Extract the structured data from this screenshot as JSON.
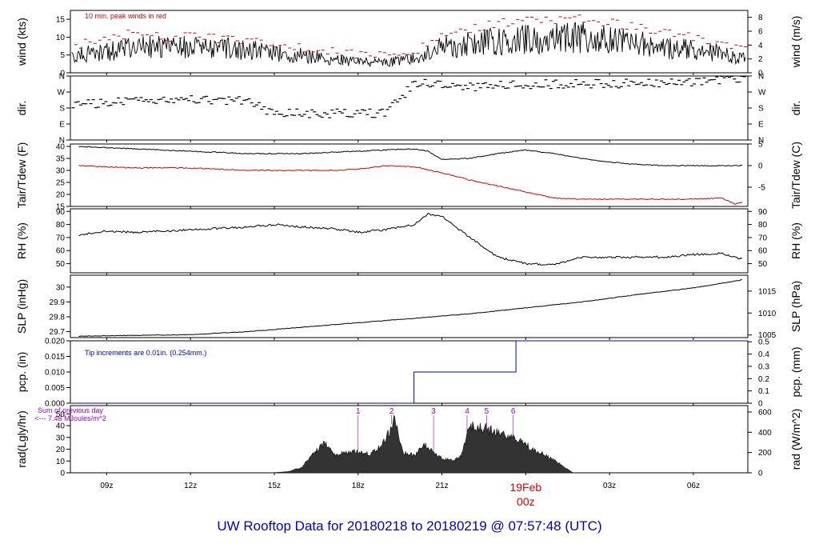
{
  "footer_title": "UW Rooftop Data for 20180218  to  20180219 @ 07:57:48  (UTC)",
  "x_axis": {
    "ticks": [
      {
        "label": "09z",
        "hour": 1
      },
      {
        "label": "12z",
        "hour": 4
      },
      {
        "label": "15z",
        "hour": 7
      },
      {
        "label": "18z",
        "hour": 10
      },
      {
        "label": "21z",
        "hour": 13
      },
      {
        "label": "00z",
        "hour": 16
      },
      {
        "label": "03z",
        "hour": 19
      },
      {
        "label": "06z",
        "hour": 22
      }
    ],
    "range_hours_from_08z": [
      -0.3,
      23.95
    ],
    "date_label": "19Feb",
    "date_sub": "00z",
    "date_color": "#dd0000"
  },
  "chart_data": [
    {
      "type": "line",
      "ylabel_left": "wind (kts)",
      "ylabel_right": "wind (m/s)",
      "ylim": [
        0,
        17.5
      ],
      "yticks_left": [
        0,
        5,
        10,
        15
      ],
      "yticks_right": [
        0,
        2,
        4,
        6,
        8
      ],
      "annotation": "10 min. peak winds in red",
      "annotation_color": "#dd0000",
      "series": [
        {
          "color": "#000000",
          "x": [
            0,
            1,
            2,
            3,
            4,
            5,
            6,
            7,
            8,
            9,
            10,
            11,
            12,
            13,
            14,
            15,
            16,
            17,
            18,
            19,
            20,
            21,
            22,
            23,
            23.8
          ],
          "y": [
            5,
            6,
            7,
            7.5,
            7,
            7,
            6.5,
            5.5,
            5,
            4,
            3,
            3,
            4,
            7,
            8,
            9,
            9.5,
            9.5,
            10,
            9.5,
            8.5,
            7,
            6.5,
            5.5,
            4
          ]
        },
        {
          "color": "#dd0000",
          "x": [
            0,
            1,
            2,
            3,
            4,
            5,
            6,
            7,
            8,
            9,
            10,
            11,
            12,
            13,
            14,
            15,
            16,
            17,
            18,
            19,
            20,
            21,
            22,
            23,
            23.8
          ],
          "y": [
            8,
            10,
            11,
            10,
            10,
            9.5,
            9,
            8,
            7,
            6,
            5,
            5,
            6,
            10,
            12,
            14,
            15,
            15,
            15,
            14,
            13,
            11,
            10,
            8,
            7
          ]
        }
      ]
    },
    {
      "type": "scatter",
      "ylabel_left": "dir.",
      "ylabel_right": "dir.",
      "yticks_labels": [
        "N",
        "E",
        "S",
        "W",
        "N"
      ],
      "ylim": [
        0,
        360
      ],
      "series": [
        {
          "x": [
            0,
            1,
            2,
            3,
            4,
            5,
            6,
            7,
            8,
            9,
            10,
            11,
            11.5,
            12,
            13,
            14,
            15,
            16,
            17,
            18,
            19,
            20,
            21,
            22,
            23,
            23.8
          ],
          "y": [
            200,
            210,
            215,
            220,
            225,
            225,
            220,
            150,
            150,
            150,
            150,
            150,
            230,
            320,
            310,
            300,
            305,
            310,
            315,
            315,
            315,
            320,
            320,
            330,
            340,
            345
          ]
        }
      ]
    },
    {
      "type": "line",
      "ylabel_left": "Tair/Tdew (F)",
      "ylabel_right": "Tair/Tdew (C)",
      "ylim": [
        15,
        41
      ],
      "yticks_left": [
        15,
        20,
        25,
        30,
        35,
        40
      ],
      "yticks_right": [
        -5,
        0,
        5
      ],
      "series": [
        {
          "name": "Tair",
          "color": "#000000",
          "x": [
            0,
            1,
            2,
            3,
            4,
            5,
            6,
            7,
            8,
            9,
            10,
            11,
            12,
            12.5,
            13,
            14,
            15,
            16,
            17,
            18,
            19,
            20,
            21,
            22,
            23,
            23.8
          ],
          "y": [
            40,
            39.5,
            39,
            38.5,
            38,
            37.5,
            37,
            37,
            37,
            37.5,
            38,
            38.5,
            39,
            38,
            34.5,
            35,
            37,
            38.5,
            37,
            35,
            33.5,
            32.5,
            32,
            32,
            32,
            32
          ]
        },
        {
          "name": "Tdew",
          "color": "#dd0000",
          "x": [
            0,
            1,
            2,
            3,
            4,
            5,
            6,
            7,
            8,
            9,
            10,
            11,
            12,
            13,
            14,
            15,
            16,
            17,
            18,
            19,
            20,
            21,
            22,
            23,
            23.5,
            23.8
          ],
          "y": [
            32,
            31.5,
            31,
            31,
            31,
            30.5,
            30,
            30,
            30,
            30,
            30.5,
            32,
            31.5,
            29,
            26,
            23.5,
            21,
            18.5,
            18,
            18,
            18,
            18,
            18,
            18.5,
            16,
            17
          ]
        }
      ]
    },
    {
      "type": "line",
      "ylabel_left": "RH (%)",
      "ylabel_right": "RH (%)",
      "ylim": [
        43,
        92
      ],
      "yticks_left": [
        50,
        60,
        70,
        80,
        90
      ],
      "yticks_right": [
        50,
        60,
        70,
        80,
        90
      ],
      "series": [
        {
          "color": "#000000",
          "x": [
            0,
            1,
            2,
            3,
            4,
            5,
            6,
            7,
            8,
            9,
            10,
            11,
            12,
            12.5,
            13,
            14,
            15,
            16,
            17,
            18,
            19,
            20,
            21,
            22,
            23,
            23.8
          ],
          "y": [
            72,
            75,
            74,
            75,
            76,
            77,
            78,
            80,
            78,
            77,
            74,
            76,
            80,
            88,
            86,
            70,
            55,
            50,
            49,
            55,
            55,
            55,
            55,
            57,
            58,
            53
          ]
        }
      ]
    },
    {
      "type": "line",
      "ylabel_left": "SLP (inHg)",
      "ylabel_right": "SLP (hPa)",
      "ylim": [
        29.66,
        30.08
      ],
      "yticks_left": [
        29.7,
        29.8,
        29.9,
        30.0
      ],
      "yticks_right": [
        1005,
        1010,
        1015
      ],
      "series": [
        {
          "color": "#000000",
          "x": [
            0,
            2,
            4,
            6,
            8,
            10,
            12,
            14,
            16,
            18,
            20,
            22,
            23.8
          ],
          "y": [
            29.67,
            29.675,
            29.68,
            29.7,
            29.73,
            29.76,
            29.79,
            29.82,
            29.86,
            29.9,
            29.95,
            29.995,
            30.05
          ]
        }
      ]
    },
    {
      "type": "line",
      "ylabel_left": "pcp. (in)",
      "ylabel_right": "pcp. (mm)",
      "ylim": [
        0,
        0.02
      ],
      "yticks_left": [
        "0.000",
        "0.005",
        "0.010",
        "0.015",
        "0.020"
      ],
      "yticks_right": [
        0,
        0.1,
        0.2,
        0.3,
        0.4,
        0.5
      ],
      "annotation": "Tip increments are 0.01in. (0.254mm.)",
      "annotation_color": "#0000cc",
      "series": [
        {
          "color": "#0000cc",
          "x": [
            -0.3,
            12.0,
            12.0,
            15.65,
            15.65,
            23.95
          ],
          "y": [
            0,
            0,
            0.01,
            0.01,
            0.02,
            0.02
          ]
        }
      ]
    },
    {
      "type": "area",
      "ylabel_left": "rad(Lgly/hr)",
      "ylabel_right": "rad (W/m^2)",
      "ylim": [
        0,
        57
      ],
      "yticks_left": [
        0,
        10,
        20,
        30,
        40,
        50
      ],
      "yticks_right": [
        0,
        200,
        400,
        600
      ],
      "annotation": "Sum of previous day",
      "annotation_sub": "<--- 7.48 MJoules/m^2",
      "annotation_color": "#9900cc",
      "top_numbers": [
        {
          "label": "1",
          "hour": 10.0
        },
        {
          "label": "2",
          "hour": 11.2
        },
        {
          "label": "3",
          "hour": 12.7
        },
        {
          "label": "4",
          "hour": 13.9
        },
        {
          "label": "5",
          "hour": 14.6
        },
        {
          "label": "6",
          "hour": 15.55
        }
      ],
      "series": [
        {
          "color": "#333333",
          "x": [
            6.9,
            7.5,
            8.0,
            8.5,
            8.8,
            9.2,
            9.6,
            10.0,
            10.4,
            10.8,
            11.1,
            11.3,
            11.6,
            12.0,
            12.4,
            12.8,
            13.1,
            13.4,
            13.7,
            14.0,
            14.6,
            15.2,
            15.8,
            16.4,
            17.0,
            17.5,
            17.7
          ],
          "y": [
            0,
            1,
            5,
            20,
            26,
            15,
            18,
            18,
            16,
            22,
            35,
            48,
            18,
            15,
            24,
            15,
            12,
            10,
            15,
            42,
            38,
            33,
            27,
            19,
            11,
            3,
            0
          ]
        }
      ]
    }
  ]
}
